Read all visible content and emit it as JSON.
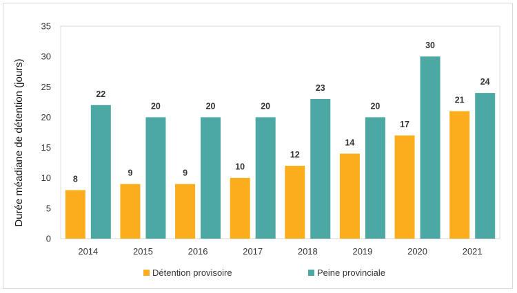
{
  "chart_data": {
    "type": "bar",
    "title": "",
    "xlabel": "",
    "ylabel": "Durée méadiane de détention (jours)",
    "categories": [
      "2014",
      "2015",
      "2016",
      "2017",
      "2018",
      "2019",
      "2020",
      "2021"
    ],
    "series": [
      {
        "name": "Détention provisoire",
        "color": "#FBAD1C",
        "values": [
          8,
          9,
          9,
          10,
          12,
          14,
          17,
          21
        ]
      },
      {
        "name": "Peine provinciale",
        "color": "#4BA8A2",
        "values": [
          22,
          20,
          20,
          20,
          23,
          20,
          30,
          24
        ]
      }
    ],
    "ylim": [
      0,
      35
    ],
    "yticks": [
      0,
      5,
      10,
      15,
      20,
      25,
      30,
      35
    ],
    "grid": false,
    "legend_position": "bottom",
    "data_labels": true
  }
}
